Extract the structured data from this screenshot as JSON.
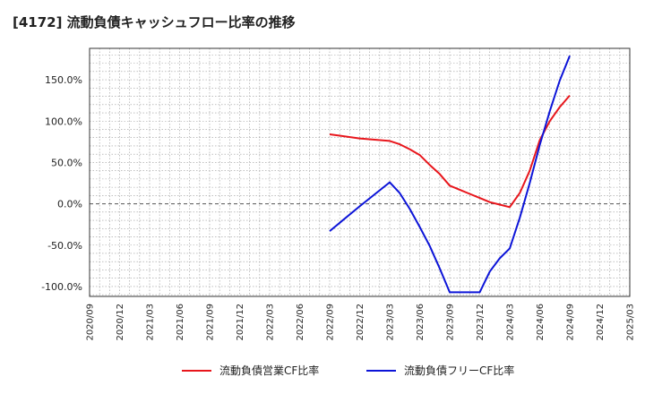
{
  "chart_data": {
    "type": "line",
    "title": "[4172]  流動負債キャッシュフロー比率の推移",
    "xlabel": "",
    "ylabel": "",
    "ylim": [
      -112,
      188
    ],
    "yticks": [
      -100,
      -50,
      0,
      50,
      100,
      150
    ],
    "ytick_labels": [
      "-100.0%",
      "-50.0%",
      "0.0%",
      "50.0%",
      "100.0%",
      "150.0%"
    ],
    "x_range": [
      "2020/09",
      "2025/03"
    ],
    "x_tick_labels": [
      "2020/09",
      "2020/12",
      "2021/03",
      "2021/06",
      "2021/09",
      "2021/12",
      "2022/03",
      "2022/06",
      "2022/09",
      "2022/12",
      "2023/03",
      "2023/06",
      "2023/09",
      "2023/12",
      "2024/03",
      "2024/06",
      "2024/09",
      "2024/12",
      "2025/03"
    ],
    "grid": true,
    "legend_position": "bottom",
    "series": [
      {
        "name": "流動負債営業CF比率",
        "color": "#e8161c",
        "x": [
          "2022/09",
          "2022/12",
          "2023/03",
          "2023/04",
          "2023/05",
          "2023/06",
          "2023/07",
          "2023/08",
          "2023/09",
          "2023/10",
          "2023/11",
          "2023/12",
          "2024/01",
          "2024/02",
          "2024/03",
          "2024/04",
          "2024/05",
          "2024/06",
          "2024/07",
          "2024/08",
          "2024/09"
        ],
        "values": [
          84,
          79,
          76,
          72,
          66,
          59,
          47,
          36,
          22,
          17,
          12,
          7,
          2,
          -1,
          -4,
          13,
          40,
          77,
          100,
          117,
          131
        ]
      },
      {
        "name": "流動負債フリーCF比率",
        "color": "#0c14d8",
        "x": [
          "2022/09",
          "2022/12",
          "2023/03",
          "2023/04",
          "2023/05",
          "2023/06",
          "2023/07",
          "2023/08",
          "2023/09",
          "2023/12",
          "2024/01",
          "2024/02",
          "2024/03",
          "2024/04",
          "2024/05",
          "2024/06",
          "2024/07",
          "2024/08",
          "2024/09"
        ],
        "values": [
          -33,
          -3,
          26,
          13,
          -6,
          -28,
          -51,
          -78,
          -107,
          -107,
          -82,
          -66,
          -54,
          -17,
          25,
          71,
          112,
          149,
          179
        ]
      }
    ]
  }
}
